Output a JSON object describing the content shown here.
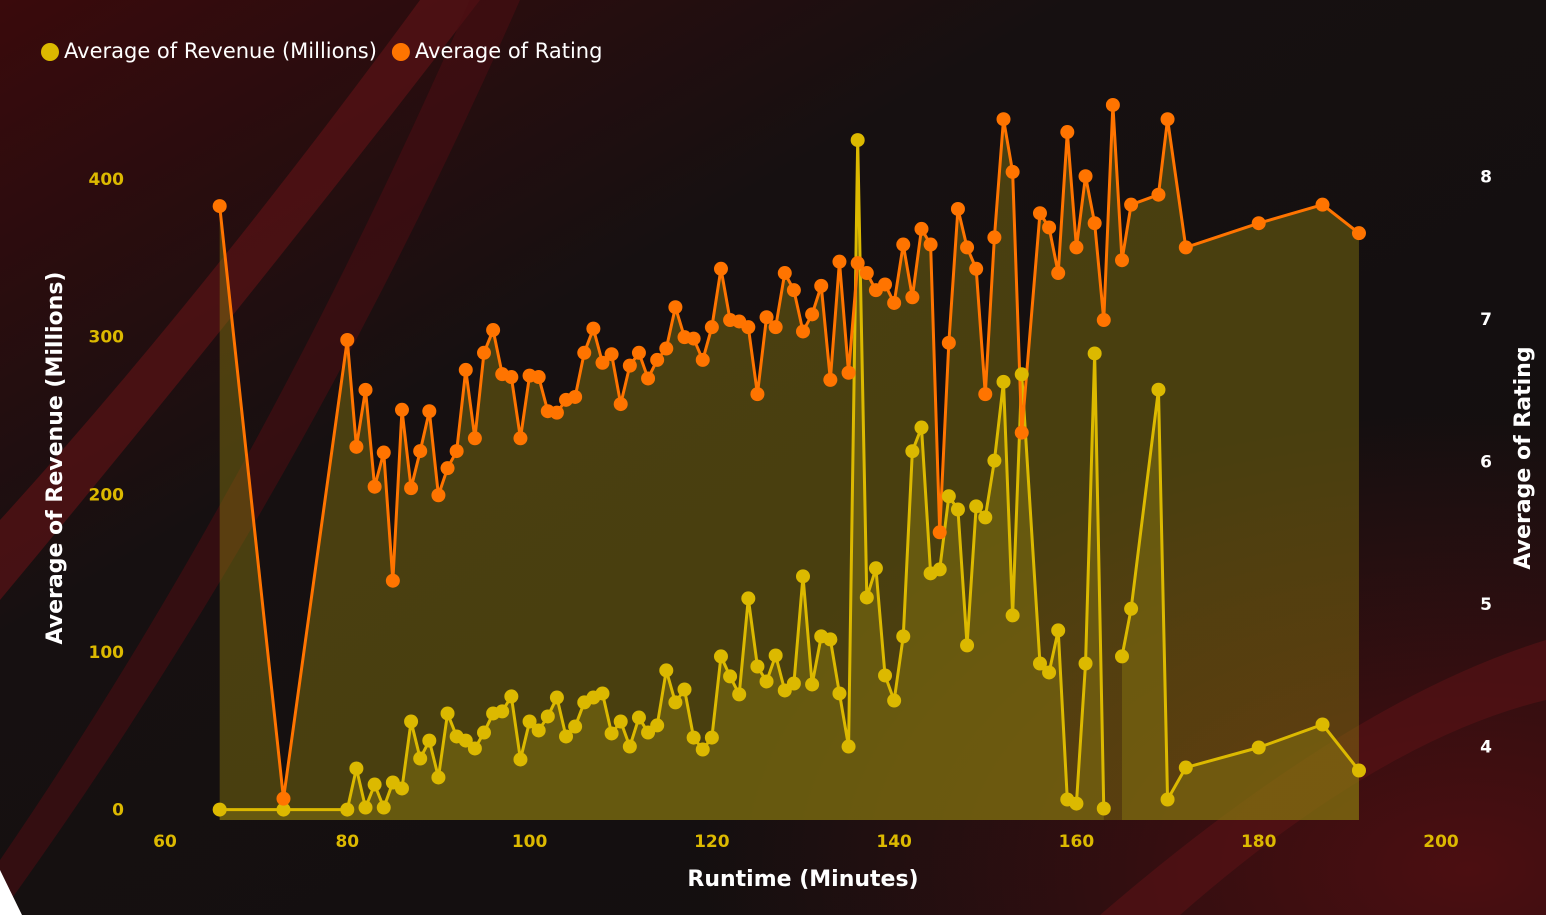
{
  "chart_data": {
    "type": "line",
    "x_label": "Runtime (Minutes)",
    "y_label": "Average of Revenue (Millions)",
    "y2_label": "Average of Rating",
    "legend": "top-left",
    "area_fill": true,
    "markers": true,
    "xlim": [
      60,
      200
    ],
    "xticks": [
      60,
      80,
      100,
      120,
      140,
      160,
      180,
      200
    ],
    "ylim": [
      -6,
      454
    ],
    "yticks": [
      0,
      100,
      200,
      300,
      400
    ],
    "y2lim": [
      3.49,
      8.58
    ],
    "y2ticks": [
      4,
      5,
      6,
      7,
      8
    ],
    "x": [
      66,
      73,
      80,
      81,
      82,
      83,
      84,
      85,
      86,
      87,
      88,
      89,
      90,
      91,
      92,
      93,
      94,
      95,
      96,
      97,
      98,
      99,
      100,
      101,
      102,
      103,
      104,
      105,
      106,
      107,
      108,
      109,
      110,
      111,
      112,
      113,
      114,
      115,
      116,
      117,
      118,
      119,
      120,
      121,
      122,
      123,
      124,
      125,
      126,
      127,
      128,
      129,
      130,
      131,
      132,
      133,
      134,
      135,
      136,
      137,
      138,
      139,
      140,
      141,
      142,
      143,
      144,
      145,
      146,
      147,
      148,
      149,
      150,
      151,
      152,
      153,
      154,
      156,
      157,
      158,
      159,
      160,
      161,
      162,
      163,
      164,
      165,
      166,
      169,
      170,
      172,
      180,
      187,
      191
    ],
    "series": [
      {
        "name": "Average of Revenue (Millions)",
        "color": "#dcb900",
        "axis": "y",
        "values": [
          0.6,
          0.6,
          0.6,
          26.7,
          1.9,
          16.5,
          1.9,
          17.8,
          14,
          56.5,
          33,
          44.4,
          21,
          61.6,
          47,
          44.4,
          39.4,
          49.5,
          61.6,
          62.9,
          72.4,
          32.4,
          56.5,
          50.8,
          59.7,
          71.7,
          47,
          53.3,
          68.6,
          71.7,
          74.3,
          48.9,
          56.5,
          40.6,
          59,
          49.5,
          54,
          88.9,
          68.6,
          76.8,
          46.3,
          38.7,
          46.3,
          97.8,
          85.1,
          73.7,
          134.6,
          91.4,
          81.9,
          98.4,
          76.2,
          80.6,
          148.6,
          80,
          110.5,
          108.6,
          74.3,
          40.6,
          425.4,
          135.2,
          153.7,
          85.7,
          69.8,
          110.5,
          228,
          243,
          150.5,
          153,
          199.4,
          191,
          104.8,
          193,
          186,
          222,
          272,
          123.8,
          276.8,
          93.3,
          87.6,
          114.3,
          7,
          4.4,
          93.3,
          290,
          1.3,
          null,
          97.8,
          128,
          267,
          7,
          27.3,
          40,
          54.6,
          25.4
        ]
      },
      {
        "name": "Average of Rating",
        "color": "#ff7400",
        "axis": "y2",
        "values": [
          7.8,
          3.64,
          6.86,
          6.11,
          6.51,
          5.83,
          6.07,
          5.17,
          6.37,
          5.82,
          6.08,
          6.36,
          5.77,
          5.96,
          6.08,
          6.65,
          6.17,
          6.77,
          6.93,
          6.62,
          6.6,
          6.17,
          6.61,
          6.6,
          6.36,
          6.35,
          6.44,
          6.46,
          6.77,
          6.94,
          6.7,
          6.76,
          6.41,
          6.68,
          6.77,
          6.59,
          6.72,
          6.8,
          7.09,
          6.88,
          6.87,
          6.72,
          6.95,
          7.36,
          7.0,
          6.99,
          6.95,
          6.48,
          7.02,
          6.95,
          7.33,
          7.21,
          6.92,
          7.04,
          7.24,
          6.58,
          7.41,
          6.63,
          7.4,
          7.33,
          7.21,
          7.25,
          7.12,
          7.53,
          7.16,
          7.64,
          7.53,
          5.51,
          6.84,
          7.78,
          7.51,
          7.36,
          6.48,
          7.58,
          8.41,
          8.04,
          6.21,
          7.75,
          7.65,
          7.33,
          8.32,
          7.51,
          8.01,
          7.68,
          7.0,
          8.51,
          7.42,
          7.81,
          7.88,
          8.41,
          7.51,
          7.68,
          7.81,
          7.61
        ]
      }
    ]
  }
}
